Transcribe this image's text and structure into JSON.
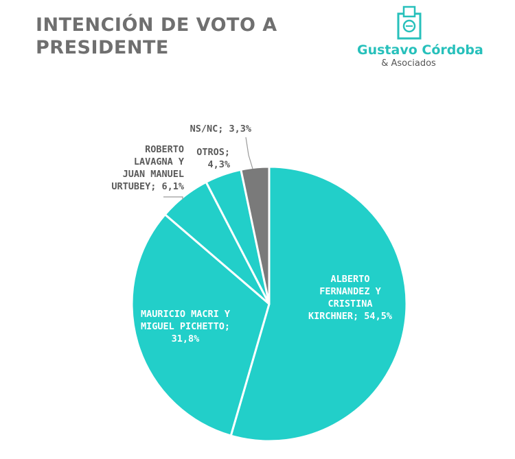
{
  "header": {
    "title_line1": "INTENCIÓN DE VOTO A",
    "title_line2": "PRESIDENTE"
  },
  "logo": {
    "name": "Gustavo Córdoba",
    "sub": "& Asociados",
    "icon": "ballot-box-icon"
  },
  "colors": {
    "teal": "#22cfc9",
    "gray": "#7a7a7a",
    "label_dark": "#5a5a5a",
    "label_light": "#ffffff"
  },
  "chart_data": {
    "type": "pie",
    "title": "INTENCIÓN DE VOTO A PRESIDENTE",
    "unit": "%",
    "slices": [
      {
        "name": "ALBERTO FERNANDEZ Y CRISTINA KIRCHNER",
        "value": 54.5,
        "color": "#22cfc9",
        "label_lines": [
          "ALBERTO",
          "FERNANDEZ Y",
          "CRISTINA",
          "KIRCHNER; 54,5%"
        ]
      },
      {
        "name": "MAURICIO MACRI Y MIGUEL PICHETTO",
        "value": 31.8,
        "color": "#22cfc9",
        "label_lines": [
          "MAURICIO MACRI Y",
          "MIGUEL PICHETTO;",
          "31,8%"
        ]
      },
      {
        "name": "ROBERTO LAVAGNA Y JUAN MANUEL URTUBEY",
        "value": 6.1,
        "color": "#22cfc9",
        "label_lines": [
          "ROBERTO",
          "LAVAGNA Y",
          "JUAN MANUEL",
          "URTUBEY; 6,1%"
        ]
      },
      {
        "name": "OTROS",
        "value": 4.3,
        "color": "#22cfc9",
        "label_lines": [
          "OTROS;",
          "4,3%"
        ]
      },
      {
        "name": "NS/NC",
        "value": 3.3,
        "color": "#7a7a7a",
        "label_lines": [
          "NS/NC; 3,3%"
        ]
      }
    ]
  }
}
